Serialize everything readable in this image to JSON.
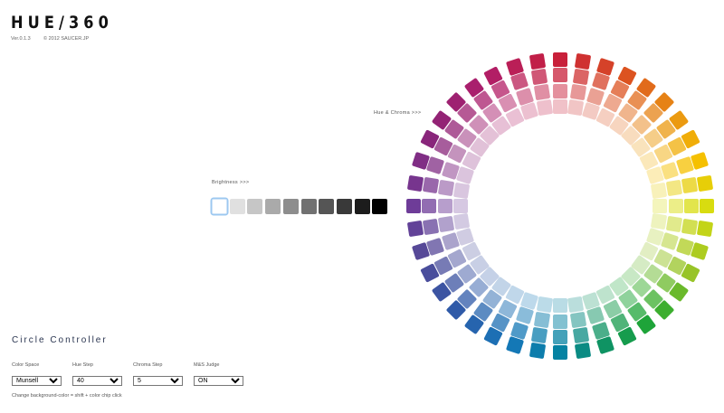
{
  "header": {
    "title": "HUE/360",
    "version": "Ver.0.1.3",
    "copyright": "© 2012 SAUCER.JP"
  },
  "labels": {
    "hue_chroma": "Hue & Chroma >>>",
    "brightness": "Brightness >>>"
  },
  "brightness": {
    "colors": [
      "#ffffff",
      "#e0e0e0",
      "#c6c6c6",
      "#aaaaaa",
      "#8d8d8d",
      "#717171",
      "#555555",
      "#393939",
      "#1c1c1c",
      "#000000"
    ],
    "selected_index": 0,
    "selected_border": "#9cc8f0"
  },
  "wheel": {
    "hue_count": 40,
    "rings": 4,
    "tint_levels": [
      0,
      0.25,
      0.5,
      0.72
    ],
    "hue_keys": [
      [
        "0",
        "#c8203a"
      ],
      [
        "27",
        "#dc5320"
      ],
      [
        "54",
        "#eb9a10"
      ],
      [
        "72",
        "#f5c000"
      ],
      [
        "90",
        "#d8dc10"
      ],
      [
        "117",
        "#98c428"
      ],
      [
        "140",
        "#22a830"
      ],
      [
        "160",
        "#10955c"
      ],
      [
        "180",
        "#0582a2"
      ],
      [
        "200",
        "#1677b8"
      ],
      [
        "225",
        "#2f5aa8"
      ],
      [
        "250",
        "#544a98"
      ],
      [
        "270",
        "#6e3c98"
      ],
      [
        "300",
        "#8c2478"
      ],
      [
        "330",
        "#b01e6a"
      ],
      [
        "360",
        "#c8203a"
      ]
    ]
  },
  "controller": {
    "title": "Circle Controller",
    "fields": [
      {
        "label": "Color Space",
        "value": "Munsell"
      },
      {
        "label": "Hue Step",
        "value": "40"
      },
      {
        "label": "Chroma Step",
        "value": "5"
      },
      {
        "label": "M&S Judge",
        "value": "ON"
      }
    ],
    "hint": "Change background-color = shift + color chip click"
  }
}
